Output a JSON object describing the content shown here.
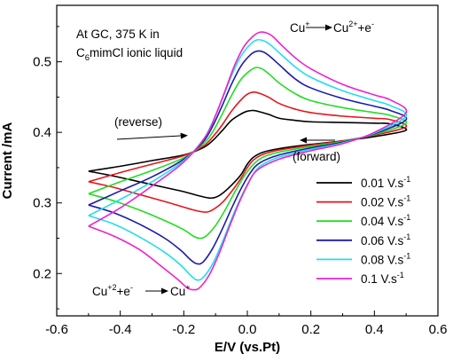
{
  "chart_data": {
    "type": "line",
    "xlabel": "E/V (vs.Pt)",
    "ylabel": "Current /mA",
    "xlim": [
      -0.6,
      0.6
    ],
    "ylim": [
      0.14,
      0.58
    ],
    "xticks": [
      "-0.6",
      "-0.4",
      "-0.2",
      "0.0",
      "0.2",
      "0.4",
      "0.6"
    ],
    "yticks": [
      "0.2",
      "0.3",
      "0.4",
      "0.5"
    ],
    "grid": false,
    "legend_position": "bottom-right",
    "annotations": {
      "condition_line1": "At GC, 375 K in",
      "condition_line2_pre": "C",
      "condition_line2_sub": "6",
      "condition_line2_post": "mimCl ionic liquid",
      "oxidation_reactant": "Cu",
      "oxidation_reactant_sup": "+",
      "oxidation_product": "Cu",
      "oxidation_product_sup": "2+",
      "oxidation_tail": "+e",
      "oxidation_tail_sup": "-",
      "reduction_reactant": "Cu",
      "reduction_reactant_sup": "+2",
      "reduction_tail": "+e",
      "reduction_tail_sup": "-",
      "reduction_product": "Cu",
      "reduction_product_sup": "+",
      "reverse_label": "(reverse)",
      "forward_label": "(forward)"
    },
    "series": [
      {
        "name": "0.01 V.s",
        "name_sup": "-1",
        "color": "#000000",
        "forward": [
          [
            -0.5,
            0.345
          ],
          [
            -0.42,
            0.338
          ],
          [
            -0.34,
            0.33
          ],
          [
            -0.26,
            0.322
          ],
          [
            -0.2,
            0.316
          ],
          [
            -0.16,
            0.311
          ],
          [
            -0.12,
            0.307
          ],
          [
            -0.1,
            0.308
          ],
          [
            -0.08,
            0.313
          ],
          [
            -0.05,
            0.325
          ],
          [
            -0.02,
            0.34
          ],
          [
            0.0,
            0.355
          ],
          [
            0.02,
            0.365
          ],
          [
            0.05,
            0.372
          ],
          [
            0.1,
            0.377
          ],
          [
            0.2,
            0.383
          ],
          [
            0.3,
            0.388
          ],
          [
            0.4,
            0.394
          ],
          [
            0.5,
            0.403
          ]
        ],
        "reverse": [
          [
            0.5,
            0.41
          ],
          [
            0.45,
            0.412
          ],
          [
            0.4,
            0.413
          ],
          [
            0.3,
            0.414
          ],
          [
            0.2,
            0.415
          ],
          [
            0.15,
            0.417
          ],
          [
            0.1,
            0.42
          ],
          [
            0.07,
            0.425
          ],
          [
            0.04,
            0.429
          ],
          [
            0.02,
            0.431
          ],
          [
            0.0,
            0.43
          ],
          [
            -0.02,
            0.426
          ],
          [
            -0.05,
            0.417
          ],
          [
            -0.08,
            0.402
          ],
          [
            -0.11,
            0.388
          ],
          [
            -0.14,
            0.378
          ],
          [
            -0.2,
            0.368
          ],
          [
            -0.3,
            0.36
          ],
          [
            -0.4,
            0.352
          ],
          [
            -0.5,
            0.345
          ]
        ]
      },
      {
        "name": "0.02 V.s",
        "name_sup": "-1",
        "color": "#e8141a",
        "forward": [
          [
            -0.5,
            0.33
          ],
          [
            -0.42,
            0.322
          ],
          [
            -0.34,
            0.312
          ],
          [
            -0.26,
            0.302
          ],
          [
            -0.2,
            0.294
          ],
          [
            -0.16,
            0.289
          ],
          [
            -0.13,
            0.287
          ],
          [
            -0.11,
            0.29
          ],
          [
            -0.08,
            0.3
          ],
          [
            -0.05,
            0.316
          ],
          [
            -0.02,
            0.335
          ],
          [
            0.0,
            0.35
          ],
          [
            0.02,
            0.361
          ],
          [
            0.05,
            0.369
          ],
          [
            0.1,
            0.375
          ],
          [
            0.2,
            0.382
          ],
          [
            0.3,
            0.388
          ],
          [
            0.4,
            0.396
          ],
          [
            0.5,
            0.408
          ]
        ],
        "reverse": [
          [
            0.5,
            0.415
          ],
          [
            0.45,
            0.418
          ],
          [
            0.4,
            0.42
          ],
          [
            0.3,
            0.423
          ],
          [
            0.2,
            0.428
          ],
          [
            0.15,
            0.433
          ],
          [
            0.1,
            0.441
          ],
          [
            0.07,
            0.449
          ],
          [
            0.04,
            0.455
          ],
          [
            0.02,
            0.457
          ],
          [
            0.0,
            0.454
          ],
          [
            -0.02,
            0.446
          ],
          [
            -0.05,
            0.43
          ],
          [
            -0.08,
            0.41
          ],
          [
            -0.11,
            0.393
          ],
          [
            -0.14,
            0.38
          ],
          [
            -0.2,
            0.367
          ],
          [
            -0.3,
            0.355
          ],
          [
            -0.4,
            0.343
          ],
          [
            -0.5,
            0.33
          ]
        ]
      },
      {
        "name": "0.04 V.s",
        "name_sup": "-1",
        "color": "#22dd22",
        "forward": [
          [
            -0.5,
            0.313
          ],
          [
            -0.42,
            0.303
          ],
          [
            -0.34,
            0.29
          ],
          [
            -0.26,
            0.275
          ],
          [
            -0.2,
            0.262
          ],
          [
            -0.17,
            0.253
          ],
          [
            -0.15,
            0.25
          ],
          [
            -0.13,
            0.253
          ],
          [
            -0.1,
            0.268
          ],
          [
            -0.07,
            0.29
          ],
          [
            -0.04,
            0.315
          ],
          [
            -0.01,
            0.338
          ],
          [
            0.02,
            0.355
          ],
          [
            0.05,
            0.365
          ],
          [
            0.1,
            0.372
          ],
          [
            0.2,
            0.38
          ],
          [
            0.3,
            0.387
          ],
          [
            0.4,
            0.397
          ],
          [
            0.5,
            0.413
          ]
        ],
        "reverse": [
          [
            0.5,
            0.42
          ],
          [
            0.45,
            0.424
          ],
          [
            0.4,
            0.428
          ],
          [
            0.3,
            0.435
          ],
          [
            0.2,
            0.445
          ],
          [
            0.15,
            0.455
          ],
          [
            0.1,
            0.47
          ],
          [
            0.07,
            0.482
          ],
          [
            0.05,
            0.489
          ],
          [
            0.03,
            0.492
          ],
          [
            0.01,
            0.488
          ],
          [
            -0.02,
            0.475
          ],
          [
            -0.05,
            0.452
          ],
          [
            -0.08,
            0.425
          ],
          [
            -0.11,
            0.4
          ],
          [
            -0.14,
            0.383
          ],
          [
            -0.2,
            0.364
          ],
          [
            -0.3,
            0.346
          ],
          [
            -0.4,
            0.33
          ],
          [
            -0.5,
            0.313
          ]
        ]
      },
      {
        "name": "0.06 V.s",
        "name_sup": "-1",
        "color": "#1a1aaa",
        "forward": [
          [
            -0.5,
            0.297
          ],
          [
            -0.42,
            0.286
          ],
          [
            -0.34,
            0.27
          ],
          [
            -0.26,
            0.25
          ],
          [
            -0.21,
            0.233
          ],
          [
            -0.18,
            0.22
          ],
          [
            -0.16,
            0.214
          ],
          [
            -0.14,
            0.216
          ],
          [
            -0.11,
            0.235
          ],
          [
            -0.08,
            0.262
          ],
          [
            -0.05,
            0.292
          ],
          [
            -0.02,
            0.32
          ],
          [
            0.01,
            0.343
          ],
          [
            0.04,
            0.357
          ],
          [
            0.1,
            0.368
          ],
          [
            0.2,
            0.378
          ],
          [
            0.3,
            0.386
          ],
          [
            0.4,
            0.398
          ],
          [
            0.5,
            0.418
          ]
        ],
        "reverse": [
          [
            0.5,
            0.426
          ],
          [
            0.45,
            0.431
          ],
          [
            0.4,
            0.437
          ],
          [
            0.3,
            0.448
          ],
          [
            0.2,
            0.463
          ],
          [
            0.15,
            0.476
          ],
          [
            0.1,
            0.496
          ],
          [
            0.07,
            0.508
          ],
          [
            0.05,
            0.514
          ],
          [
            0.03,
            0.515
          ],
          [
            0.01,
            0.51
          ],
          [
            -0.02,
            0.494
          ],
          [
            -0.05,
            0.468
          ],
          [
            -0.08,
            0.437
          ],
          [
            -0.11,
            0.408
          ],
          [
            -0.14,
            0.386
          ],
          [
            -0.2,
            0.362
          ],
          [
            -0.3,
            0.337
          ],
          [
            -0.4,
            0.317
          ],
          [
            -0.5,
            0.297
          ]
        ]
      },
      {
        "name": "0.08 V.s",
        "name_sup": "-1",
        "color": "#22ddee",
        "forward": [
          [
            -0.5,
            0.282
          ],
          [
            -0.42,
            0.27
          ],
          [
            -0.34,
            0.252
          ],
          [
            -0.26,
            0.23
          ],
          [
            -0.21,
            0.212
          ],
          [
            -0.18,
            0.198
          ],
          [
            -0.16,
            0.191
          ],
          [
            -0.14,
            0.194
          ],
          [
            -0.11,
            0.213
          ],
          [
            -0.08,
            0.243
          ],
          [
            -0.05,
            0.277
          ],
          [
            -0.02,
            0.308
          ],
          [
            0.01,
            0.334
          ],
          [
            0.04,
            0.352
          ],
          [
            0.1,
            0.365
          ],
          [
            0.2,
            0.376
          ],
          [
            0.3,
            0.385
          ],
          [
            0.4,
            0.399
          ],
          [
            0.5,
            0.423
          ]
        ],
        "reverse": [
          [
            0.5,
            0.432
          ],
          [
            0.45,
            0.438
          ],
          [
            0.4,
            0.445
          ],
          [
            0.3,
            0.459
          ],
          [
            0.2,
            0.478
          ],
          [
            0.15,
            0.493
          ],
          [
            0.1,
            0.513
          ],
          [
            0.07,
            0.525
          ],
          [
            0.05,
            0.53
          ],
          [
            0.03,
            0.531
          ],
          [
            0.01,
            0.525
          ],
          [
            -0.02,
            0.508
          ],
          [
            -0.05,
            0.48
          ],
          [
            -0.08,
            0.446
          ],
          [
            -0.11,
            0.414
          ],
          [
            -0.14,
            0.389
          ],
          [
            -0.2,
            0.36
          ],
          [
            -0.3,
            0.33
          ],
          [
            -0.4,
            0.305
          ],
          [
            -0.5,
            0.282
          ]
        ]
      },
      {
        "name": "0.1 V.s",
        "name_sup": "-1",
        "color": "#ee22cc",
        "forward": [
          [
            -0.5,
            0.267
          ],
          [
            -0.42,
            0.253
          ],
          [
            -0.34,
            0.234
          ],
          [
            -0.27,
            0.21
          ],
          [
            -0.22,
            0.192
          ],
          [
            -0.19,
            0.18
          ],
          [
            -0.17,
            0.177
          ],
          [
            -0.15,
            0.18
          ],
          [
            -0.12,
            0.198
          ],
          [
            -0.09,
            0.227
          ],
          [
            -0.06,
            0.262
          ],
          [
            -0.03,
            0.296
          ],
          [
            0.0,
            0.325
          ],
          [
            0.03,
            0.346
          ],
          [
            0.1,
            0.362
          ],
          [
            0.2,
            0.374
          ],
          [
            0.3,
            0.384
          ],
          [
            0.4,
            0.4
          ],
          [
            0.5,
            0.428
          ]
        ],
        "reverse": [
          [
            0.5,
            0.44
          ],
          [
            0.45,
            0.446
          ],
          [
            0.4,
            0.453
          ],
          [
            0.3,
            0.468
          ],
          [
            0.2,
            0.49
          ],
          [
            0.15,
            0.506
          ],
          [
            0.1,
            0.527
          ],
          [
            0.08,
            0.536
          ],
          [
            0.06,
            0.541
          ],
          [
            0.04,
            0.542
          ],
          [
            0.02,
            0.537
          ],
          [
            -0.01,
            0.522
          ],
          [
            -0.04,
            0.495
          ],
          [
            -0.07,
            0.459
          ],
          [
            -0.1,
            0.424
          ],
          [
            -0.13,
            0.395
          ],
          [
            -0.2,
            0.358
          ],
          [
            -0.3,
            0.324
          ],
          [
            -0.4,
            0.293
          ],
          [
            -0.5,
            0.267
          ]
        ]
      }
    ]
  }
}
